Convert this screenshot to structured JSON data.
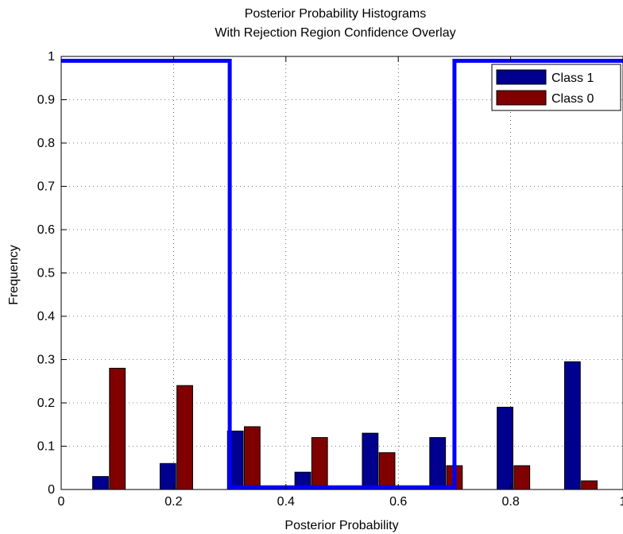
{
  "chart_data": {
    "type": "bar",
    "title": "Posterior Probability Histograms",
    "subtitle": "With Rejection Region Confidence Overlay",
    "xlabel": "Posterior Probability",
    "ylabel": "Frequency",
    "xlim": [
      0,
      1
    ],
    "ylim": [
      0,
      1
    ],
    "x_ticks": [
      "0",
      "0.2",
      "0.4",
      "0.6",
      "0.8",
      "1"
    ],
    "y_ticks": [
      "0",
      "0.1",
      "0.2",
      "0.3",
      "0.4",
      "0.5",
      "0.6",
      "0.7",
      "0.8",
      "0.9",
      "1"
    ],
    "grid": true,
    "legend_position": "top-right",
    "series": [
      {
        "name": "Class 1",
        "color": "#00008f",
        "x": [
          0.05,
          0.15,
          0.25,
          0.35,
          0.45,
          0.55,
          0.65,
          0.75,
          0.85
        ],
        "values": [
          0.03,
          0.06,
          0.135,
          0.04,
          0.13,
          0.12,
          0.19,
          0.295,
          0.0
        ]
      },
      {
        "name": "Class 0",
        "color": "#800000",
        "x": [
          0.05,
          0.15,
          0.25,
          0.35,
          0.45,
          0.55,
          0.65,
          0.75,
          0.85
        ],
        "values": [
          0.28,
          0.24,
          0.145,
          0.12,
          0.085,
          0.055,
          0.055,
          0.02,
          0.0
        ]
      }
    ],
    "bar_positions": {
      "class1_x": [
        0.07,
        0.19,
        0.31,
        0.43,
        0.55,
        0.67,
        0.79,
        0.91
      ],
      "class1_values": [
        0.03,
        0.06,
        0.135,
        0.04,
        0.13,
        0.12,
        0.19,
        0.295
      ],
      "class0_x": [
        0.1,
        0.22,
        0.34,
        0.46,
        0.58,
        0.7,
        0.82,
        0.94
      ],
      "class0_values": [
        0.28,
        0.24,
        0.145,
        0.12,
        0.085,
        0.055,
        0.055,
        0.02
      ]
    },
    "overlay_line": {
      "color": "#0000ff",
      "points": [
        [
          0,
          0.99
        ],
        [
          0.3,
          0.99
        ],
        [
          0.3,
          0.005
        ],
        [
          0.7,
          0.005
        ],
        [
          0.7,
          0.99
        ],
        [
          1,
          0.99
        ]
      ]
    }
  }
}
